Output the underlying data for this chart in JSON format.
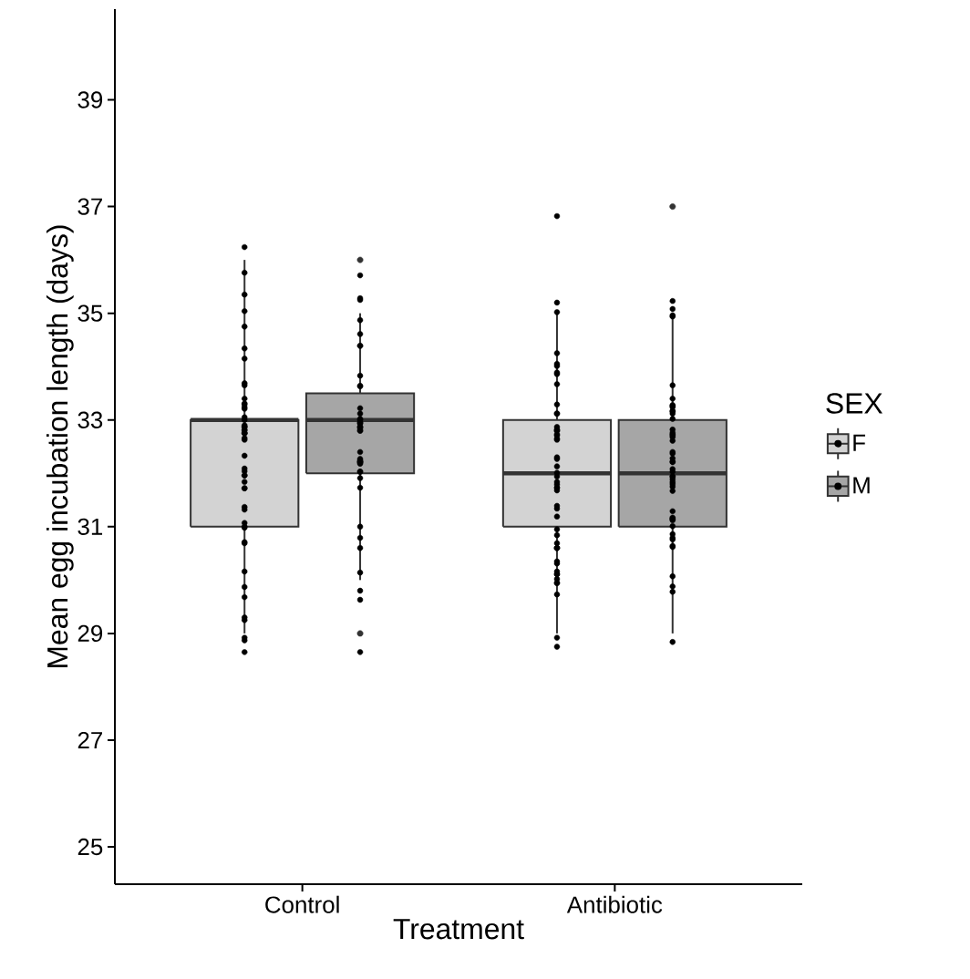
{
  "chart_data": {
    "type": "box",
    "xlabel": "Treatment",
    "ylabel": "Mean egg incubation length (days)",
    "legend_title": "SEX",
    "legend": "right",
    "marker": "circle",
    "categories": [
      "Control",
      "Antibiotic"
    ],
    "ylim": [
      24.3,
      40.7
    ],
    "yticks": [
      25,
      27,
      29,
      31,
      33,
      35,
      37,
      39
    ],
    "series": [
      {
        "name": "F",
        "color": "#d3d3d3",
        "boxes": [
          {
            "low": 29,
            "q1": 31,
            "median": 33,
            "q3": 33,
            "high": 36
          },
          {
            "low": 29,
            "q1": 31,
            "median": 32,
            "q3": 33,
            "high": 35
          }
        ]
      },
      {
        "name": "M",
        "color": "#a6a6a6",
        "boxes": [
          {
            "low": 30,
            "q1": 32,
            "median": 33,
            "q3": 33.5,
            "high": 35,
            "outliers": [
              36,
              29
            ]
          },
          {
            "low": 29,
            "q1": 31,
            "median": 32,
            "q3": 33,
            "high": 35,
            "outliers": [
              37
            ]
          }
        ]
      },
      {
        "type": "scatter",
        "color": "#000000",
        "x": [
          "Control",
          "Control",
          "Control",
          "Control",
          "Control",
          "Control",
          "Control",
          "Control",
          "Control",
          "Control",
          "Control",
          "Control",
          "Control",
          "Control",
          "Control",
          "Control",
          "Control",
          "Control",
          "Control",
          "Control",
          "Control",
          "Control",
          "Control",
          "Control",
          "Control",
          "Control",
          "Control",
          "Control",
          "Control",
          "Control",
          "Control",
          "Control",
          "Control",
          "Control",
          "Control",
          "Control",
          "Control",
          "Control",
          "Control",
          "Control",
          "Control",
          "Control",
          "Control",
          "Control",
          "Control",
          "Control",
          "Control",
          "Control",
          "Control",
          "Antibiotic",
          "Antibiotic",
          "Antibiotic",
          "Antibiotic",
          "Antibiotic",
          "Antibiotic",
          "Antibiotic",
          "Antibiotic",
          "Antibiotic",
          "Antibiotic",
          "Antibiotic",
          "Antibiotic",
          "Antibiotic",
          "Antibiotic",
          "Antibiotic",
          "Antibiotic",
          "Antibiotic",
          "Antibiotic",
          "Antibiotic",
          "Antibiotic",
          "Antibiotic",
          "Antibiotic",
          "Antibiotic",
          "Antibiotic",
          "Antibiotic",
          "Antibiotic",
          "Antibiotic",
          "Antibiotic",
          "Antibiotic",
          "Antibiotic",
          "Antibiotic",
          "Antibiotic",
          "Antibiotic",
          "Antibiotic",
          "Antibiotic",
          "Antibiotic",
          "Antibiotic",
          "Antibiotic",
          "Antibiotic",
          "Antibiotic",
          "Antibiotic",
          "Antibiotic",
          "Antibiotic",
          "Antibiotic",
          "Antibiotic",
          "Antibiotic",
          "Antibiotic",
          "Antibiotic",
          "Antibiotic",
          "Antibiotic"
        ],
        "values": [
          36.24,
          35.76,
          35.35,
          35.04,
          34.75,
          34.34,
          34.15,
          33.65,
          33.69,
          33.4,
          33.29,
          33.21,
          33.24,
          33.31,
          33.05,
          33.0,
          32.76,
          32.81,
          32.87,
          32.75,
          32.81,
          32.87,
          32.75,
          32.66,
          32.63,
          32.9,
          32.33,
          32.09,
          31.96,
          32.04,
          31.96,
          31.84,
          31.72,
          31.72,
          31.32,
          31.37,
          31.07,
          30.98,
          31.0,
          30.71,
          30.69,
          30.16,
          29.87,
          29.68,
          29.25,
          29.3,
          28.92,
          28.87,
          28.65,
          36.82,
          35.2,
          35.02,
          34.05,
          33.89,
          33.86,
          34.25,
          34.01,
          33.67,
          33.29,
          33.12,
          33.12,
          32.87,
          32.8,
          32.71,
          32.82,
          32.8,
          32.65,
          32.73,
          32.63,
          32.27,
          32.3,
          32.13,
          32.01,
          31.94,
          31.79,
          31.73,
          31.84,
          31.68,
          31.73,
          31.34,
          31.39,
          31.19,
          30.95,
          30.84,
          30.6,
          30.69,
          30.6,
          30.6,
          30.35,
          30.11,
          30.31,
          30.16,
          29.94,
          30.11,
          29.95,
          29.73,
          30.02,
          28.92,
          28.75
        ]
      },
      {
        "type": "scatter",
        "color": "#000000",
        "x": [
          "Control",
          "Control",
          "Control",
          "Control",
          "Control",
          "Control",
          "Control",
          "Control",
          "Control",
          "Control",
          "Control",
          "Control",
          "Control",
          "Control",
          "Control",
          "Control",
          "Control",
          "Control",
          "Control",
          "Control",
          "Control",
          "Control",
          "Control",
          "Control",
          "Control",
          "Control",
          "Control",
          "Control",
          "Control",
          "Control",
          "Control",
          "Control",
          "Control",
          "Control",
          "Control",
          "Control",
          "Control",
          "Control",
          "Control",
          "Control",
          "Control",
          "Antibiotic",
          "Antibiotic",
          "Antibiotic",
          "Antibiotic",
          "Antibiotic",
          "Antibiotic",
          "Antibiotic",
          "Antibiotic",
          "Antibiotic",
          "Antibiotic",
          "Antibiotic",
          "Antibiotic",
          "Antibiotic",
          "Antibiotic",
          "Antibiotic",
          "Antibiotic",
          "Antibiotic",
          "Antibiotic",
          "Antibiotic",
          "Antibiotic",
          "Antibiotic",
          "Antibiotic",
          "Antibiotic",
          "Antibiotic",
          "Antibiotic",
          "Antibiotic",
          "Antibiotic",
          "Antibiotic",
          "Antibiotic",
          "Antibiotic",
          "Antibiotic",
          "Antibiotic",
          "Antibiotic",
          "Antibiotic",
          "Antibiotic",
          "Antibiotic",
          "Antibiotic",
          "Antibiotic",
          "Antibiotic",
          "Antibiotic",
          "Antibiotic",
          "Antibiotic",
          "Antibiotic",
          "Antibiotic",
          "Antibiotic",
          "Antibiotic",
          "Antibiotic",
          "Antibiotic"
        ],
        "values": [
          35.71,
          35.25,
          35.28,
          34.87,
          34.61,
          34.39,
          34.39,
          33.64,
          33.63,
          33.83,
          33.22,
          33.12,
          32.95,
          32.8,
          32.87,
          32.95,
          32.87,
          33.0,
          32.8,
          33.02,
          32.93,
          32.85,
          32.4,
          32.27,
          32.21,
          32.23,
          32.23,
          32.18,
          32.2,
          32.21,
          32.03,
          32.03,
          31.91,
          31.73,
          30.79,
          31.0,
          30.6,
          30.14,
          29.63,
          29.8,
          28.65,
          35.23,
          35.08,
          34.94,
          34.96,
          33.65,
          33.4,
          33.24,
          33.16,
          33.28,
          33.12,
          33.17,
          33.26,
          33.02,
          32.76,
          32.68,
          32.61,
          32.82,
          32.73,
          32.71,
          32.28,
          32.37,
          32.21,
          32.22,
          32.08,
          32.4,
          32.03,
          31.84,
          31.89,
          31.8,
          31.75,
          31.67,
          31.94,
          31.94,
          31.29,
          31.15,
          31.17,
          31.01,
          31.12,
          31.14,
          30.86,
          30.62,
          30.76,
          30.64,
          30.79,
          30.07,
          29.78,
          29.88,
          28.84
        ]
      }
    ]
  }
}
